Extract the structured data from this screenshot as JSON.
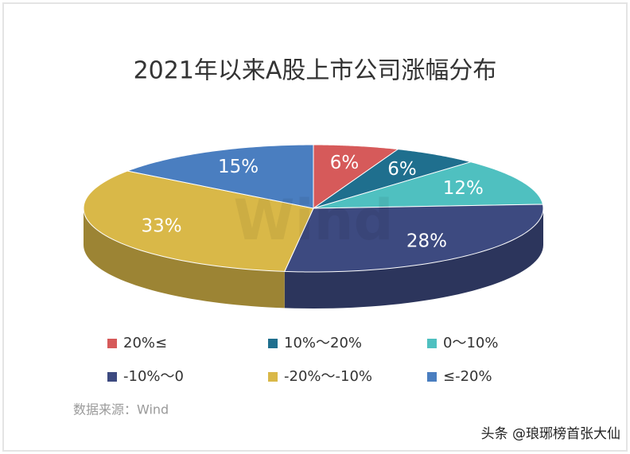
{
  "chart_data": {
    "type": "pie",
    "title": "2021年以来A股上市公司涨幅分布",
    "categories": [
      "20%≤",
      "10%～20%",
      "0～10%",
      "-10%～0",
      "-20%～-10%",
      "≤-20%"
    ],
    "values": [
      6,
      6,
      12,
      28,
      33,
      15
    ],
    "value_labels": [
      "6%",
      "6%",
      "12%",
      "28%",
      "33%",
      "15%"
    ],
    "colors": [
      "#d65a5a",
      "#1f6f8e",
      "#4fc0c0",
      "#3d4a80",
      "#d9b848",
      "#4a7ec0"
    ],
    "source": "数据来源：Wind",
    "watermark": "Wind",
    "credit": "头条 @琅琊榜首张大仙"
  }
}
